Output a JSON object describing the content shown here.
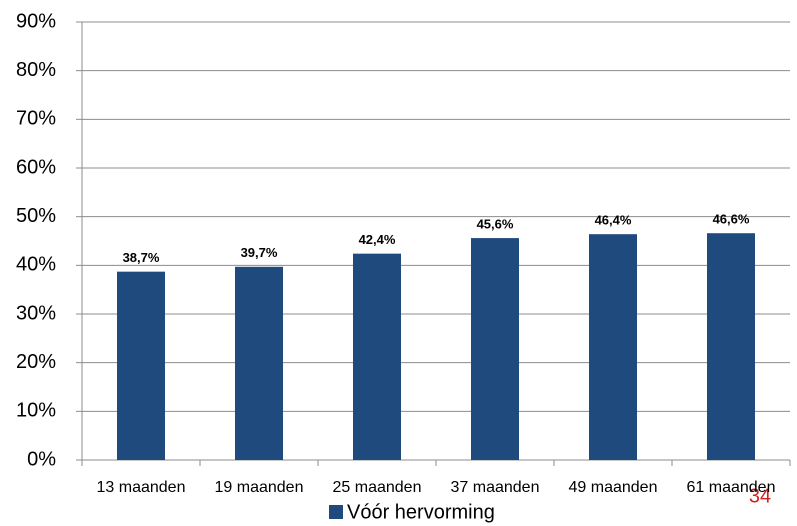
{
  "chart_data": {
    "type": "bar",
    "categories": [
      "13 maanden",
      "19 maanden",
      "25 maanden",
      "37 maanden",
      "49 maanden",
      "61 maanden"
    ],
    "series": [
      {
        "name": "Vóór hervorming",
        "color": "#1f4a7e",
        "values": [
          38.7,
          39.7,
          42.4,
          45.6,
          46.4,
          46.6
        ],
        "value_labels": [
          "38,7%",
          "39,7%",
          "42,4%",
          "45,6%",
          "46,4%",
          "46,6%"
        ]
      }
    ],
    "ylim": [
      0,
      90
    ],
    "yticks": [
      {
        "value": 0,
        "label": "0%"
      },
      {
        "value": 10,
        "label": "10%"
      },
      {
        "value": 20,
        "label": "20%"
      },
      {
        "value": 30,
        "label": "30%"
      },
      {
        "value": 40,
        "label": "40%"
      },
      {
        "value": 50,
        "label": "50%"
      },
      {
        "value": 60,
        "label": "60%"
      },
      {
        "value": 70,
        "label": "70%"
      },
      {
        "value": 80,
        "label": "80%"
      },
      {
        "value": 90,
        "label": "90%"
      }
    ],
    "grid": true,
    "legend": "bottom"
  },
  "page_number": "34"
}
